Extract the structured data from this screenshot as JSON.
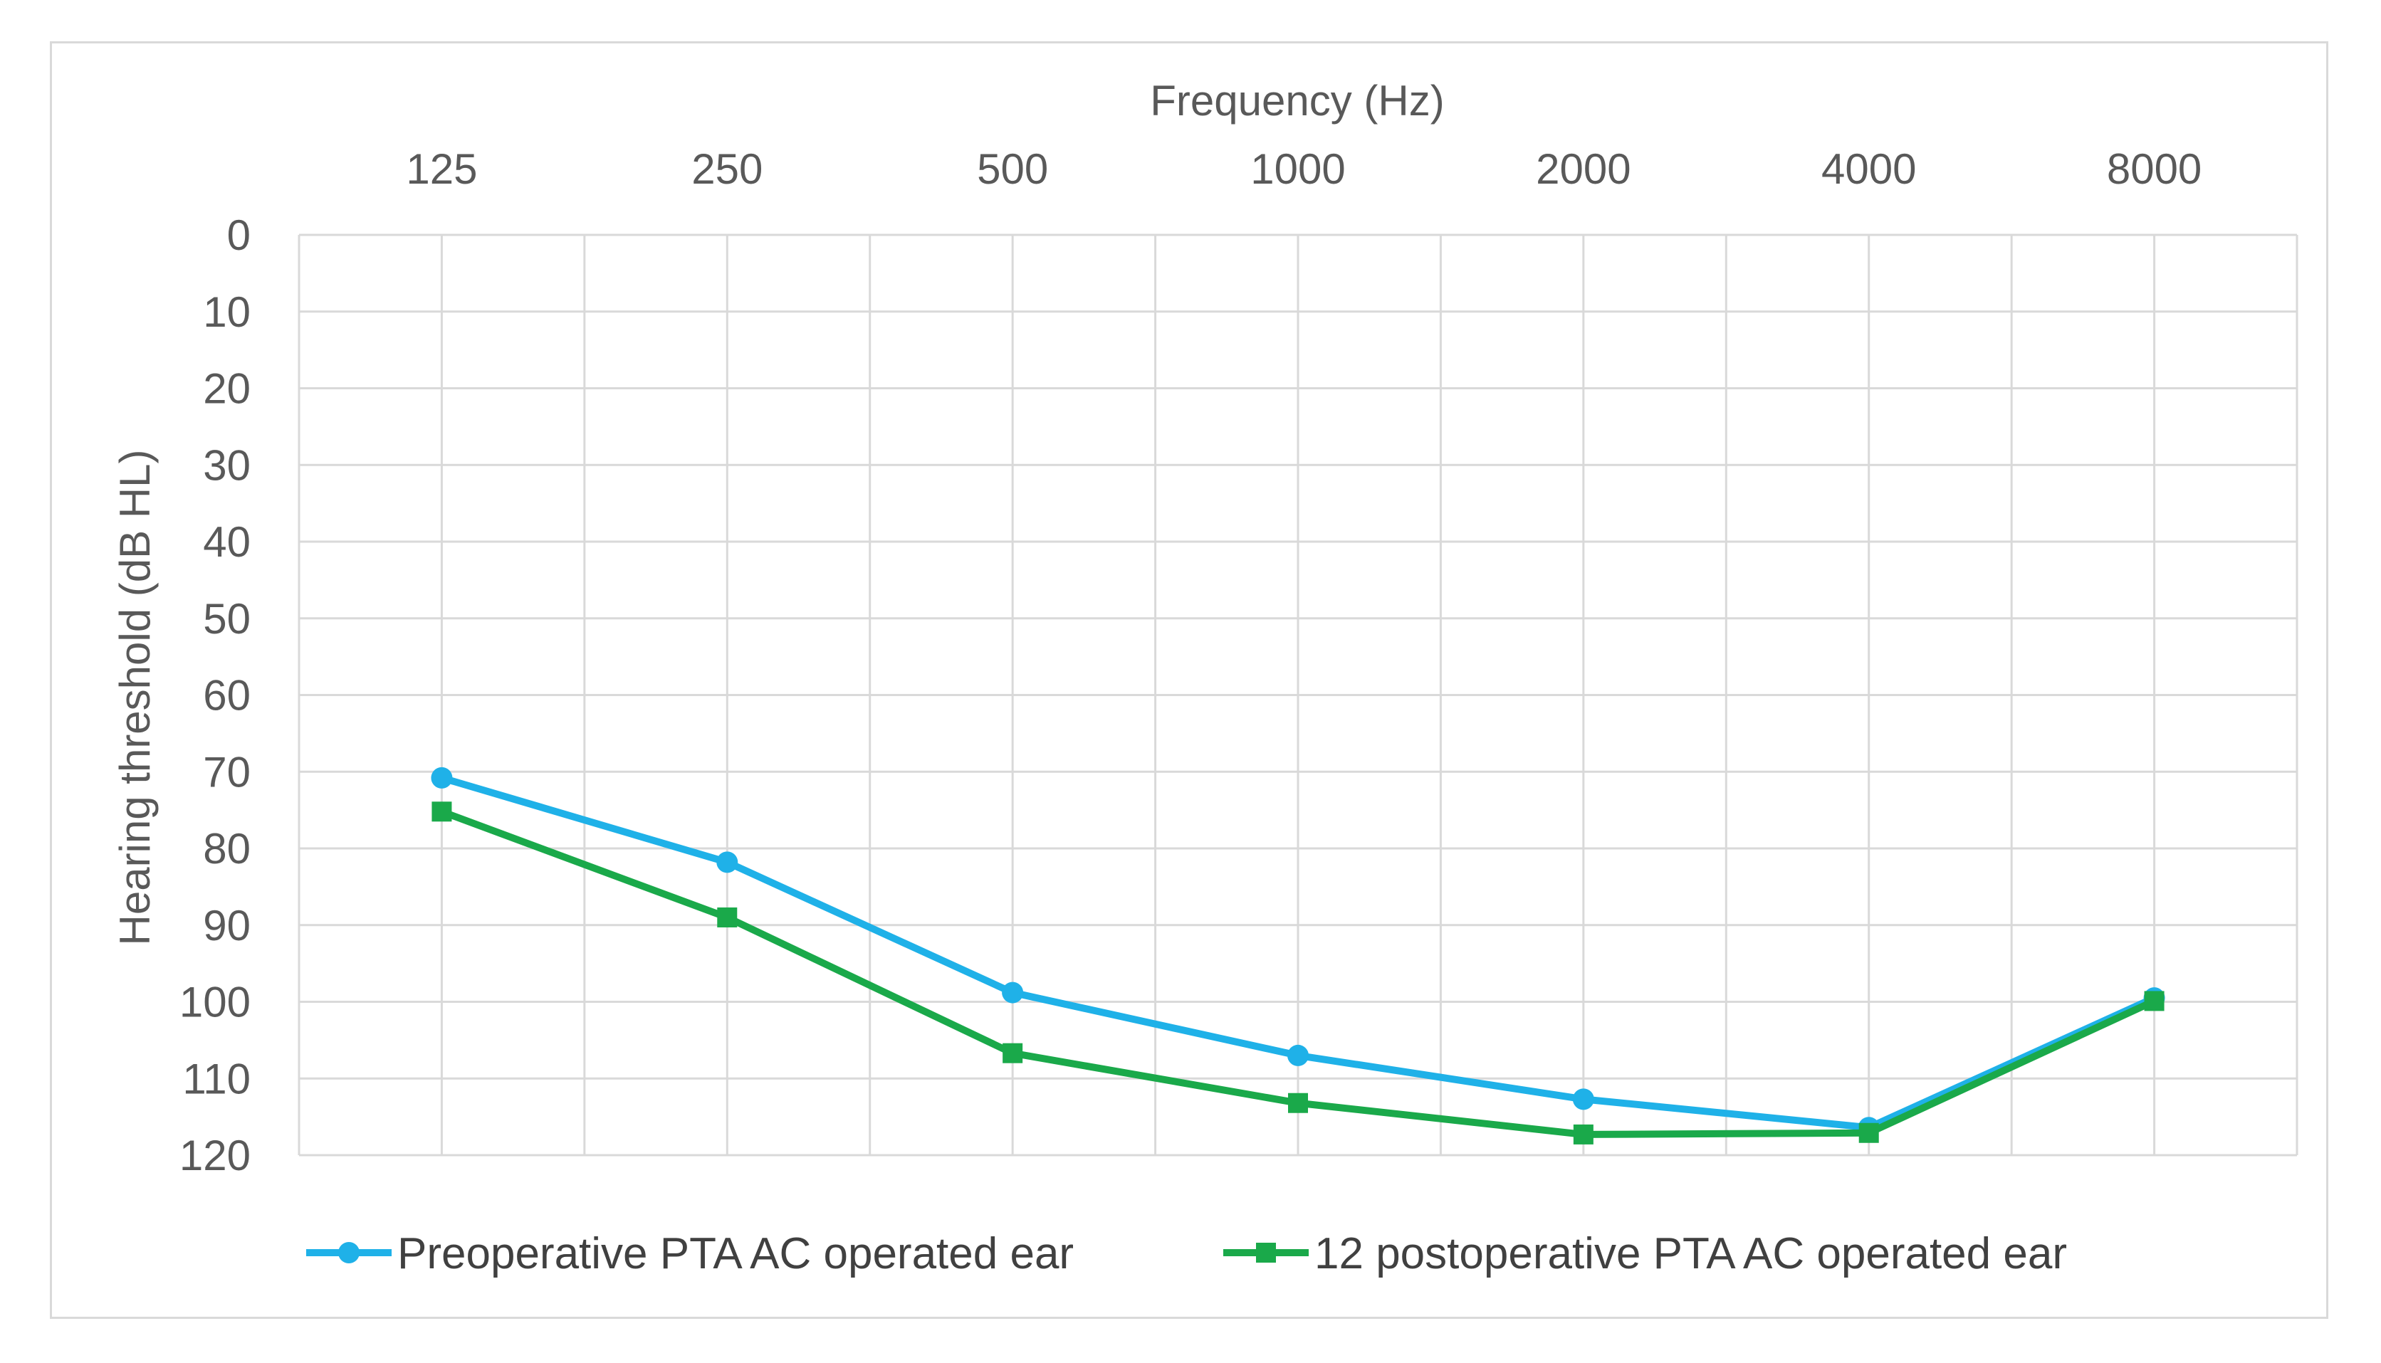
{
  "chart_data": {
    "type": "line",
    "title": "",
    "xlabel": "Frequency  (Hz)",
    "ylabel": "Hearing threshold (dB HL)",
    "categories": [
      "125",
      "250",
      "500",
      "1000",
      "2000",
      "4000",
      "8000"
    ],
    "ylim": [
      0,
      120
    ],
    "y_inverted": true,
    "y_ticks": [
      0,
      10,
      20,
      30,
      40,
      50,
      60,
      70,
      80,
      90,
      100,
      110,
      120
    ],
    "x_axis_position": "top",
    "grid": true,
    "legend_position": "bottom",
    "series": [
      {
        "name": "Preoperative PTA AC operated ear",
        "values": [
          70.8,
          81.8,
          98.8,
          107.0,
          112.7,
          116.4,
          99.5
        ],
        "color": "#1fb1e8",
        "marker": "circle"
      },
      {
        "name": "12 postoperative PTA AC operated ear",
        "values": [
          75.2,
          89.0,
          106.7,
          113.2,
          117.3,
          117.1,
          99.9
        ],
        "color": "#1aa94a",
        "marker": "square"
      }
    ]
  }
}
